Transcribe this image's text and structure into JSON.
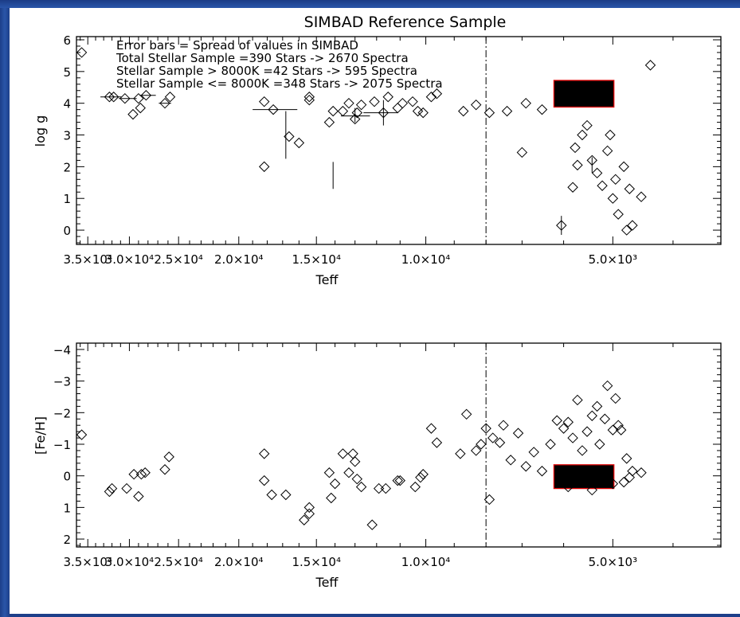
{
  "colors": {
    "frame": "#1f4590",
    "ink": "#000000",
    "highlight": "#dd0000"
  },
  "chart_data": [
    {
      "type": "scatter",
      "title": "SIMBAD Reference Sample",
      "xlabel": "Teff",
      "ylabel": "log g",
      "x_scale": "log",
      "x_reversed": true,
      "y_reversed": true,
      "xlim": [
        36500,
        3350
      ],
      "ylim": [
        6.1,
        -0.45
      ],
      "xticks": [
        35000,
        30000,
        25000,
        20000,
        15000,
        10000,
        5000
      ],
      "xtick_labels": [
        "3.5×10⁴",
        "3.0×10⁴",
        "2.5×10⁴",
        "2.0×10⁴",
        "1.5×10⁴",
        "1.0×10⁴",
        "5.0×10³"
      ],
      "yticks": [
        0,
        1,
        2,
        3,
        4,
        5,
        6
      ],
      "ytick_labels": [
        "0",
        "1",
        "2",
        "3",
        "4",
        "5",
        "6"
      ],
      "annotations": [
        "Error bars = Spread of values in SIMBAD",
        "Total Stellar Sample =390 Stars -> 2670 Spectra",
        "Stellar Sample > 8000K =42 Stars -> 595 Spectra",
        "Stellar Sample <= 8000K =348 Stars -> 2075 Spectra"
      ],
      "vline_x": 8000,
      "highlight_box": {
        "x": [
          6220,
          4980
        ],
        "y": [
          3.88,
          4.72
        ]
      },
      "points": [
        [
          35800,
          5.6
        ],
        [
          32300,
          4.2
        ],
        [
          31800,
          4.2
        ],
        [
          30500,
          4.15
        ],
        [
          29600,
          3.65
        ],
        [
          29000,
          4.15
        ],
        [
          28800,
          3.85
        ],
        [
          28200,
          4.25
        ],
        [
          26300,
          4.0
        ],
        [
          25800,
          4.2
        ],
        [
          18200,
          2.0
        ],
        [
          18200,
          4.05
        ],
        [
          17600,
          3.8
        ],
        [
          16600,
          2.95
        ],
        [
          16000,
          2.75
        ],
        [
          15400,
          4.1
        ],
        [
          15400,
          4.2
        ],
        [
          14300,
          3.4
        ],
        [
          14100,
          3.75
        ],
        [
          13600,
          3.75
        ],
        [
          13300,
          4.0
        ],
        [
          13000,
          3.5
        ],
        [
          12900,
          3.7
        ],
        [
          12700,
          3.95
        ],
        [
          12100,
          4.05
        ],
        [
          11700,
          3.7
        ],
        [
          11500,
          4.2
        ],
        [
          11100,
          3.85
        ],
        [
          10900,
          4.0
        ],
        [
          10500,
          4.05
        ],
        [
          10300,
          3.75
        ],
        [
          10100,
          3.7
        ],
        [
          9800,
          4.2
        ],
        [
          9600,
          4.3
        ],
        [
          8700,
          3.75
        ],
        [
          8300,
          3.95
        ],
        [
          7900,
          3.7
        ],
        [
          7400,
          3.75
        ],
        [
          7000,
          2.45
        ],
        [
          6900,
          4.0
        ],
        [
          6500,
          3.8
        ],
        [
          6050,
          0.15
        ],
        [
          5800,
          1.35
        ],
        [
          5700,
          2.05
        ],
        [
          5750,
          2.6
        ],
        [
          5600,
          3.0
        ],
        [
          5500,
          3.3
        ],
        [
          5400,
          2.2
        ],
        [
          5300,
          1.8
        ],
        [
          5200,
          1.4
        ],
        [
          5100,
          2.5
        ],
        [
          5050,
          3.0
        ],
        [
          5000,
          1.0
        ],
        [
          4950,
          1.6
        ],
        [
          4900,
          0.5
        ],
        [
          4800,
          2.0
        ],
        [
          4750,
          0.0
        ],
        [
          4700,
          1.3
        ],
        [
          4650,
          0.15
        ],
        [
          4500,
          1.05
        ],
        [
          4350,
          5.2
        ]
      ],
      "error_bars": [
        {
          "x": 32100,
          "y": 4.2,
          "x_range": [
            33400,
            30900
          ]
        },
        {
          "x": 30300,
          "y": 4.15,
          "x_range": [
            31200,
            29200
          ]
        },
        {
          "x": 28200,
          "y": 4.25,
          "x_range": [
            28900,
            27200
          ]
        },
        {
          "x": 26300,
          "y": 4.0,
          "x_range": [
            26900,
            25700
          ]
        },
        {
          "x": 16800,
          "y": 2.95,
          "y_range": [
            2.25,
            3.75
          ]
        },
        {
          "x": 17600,
          "y": 3.8,
          "x_range": [
            19000,
            16100
          ]
        },
        {
          "x": 14100,
          "y": 1.75,
          "y_range": [
            1.3,
            2.15
          ]
        },
        {
          "x": 13000,
          "y": 3.6,
          "x_range": [
            13700,
            12300
          ],
          "y_range": [
            3.4,
            3.85
          ]
        },
        {
          "x": 11700,
          "y": 3.7,
          "x_range": [
            12600,
            11100
          ],
          "y_range": [
            3.3,
            4.1
          ]
        },
        {
          "x": 6050,
          "y": 0.15,
          "y_range": [
            -0.15,
            0.45
          ]
        },
        {
          "x": 5400,
          "y": 2.0,
          "y_range": [
            1.8,
            2.3
          ]
        }
      ]
    },
    {
      "type": "scatter",
      "title": "",
      "xlabel": "Teff",
      "ylabel": "[Fe/H]",
      "x_scale": "log",
      "x_reversed": true,
      "xlim": [
        36500,
        3350
      ],
      "ylim": [
        -4.2,
        2.25
      ],
      "xticks": [
        35000,
        30000,
        25000,
        20000,
        15000,
        10000,
        5000
      ],
      "xtick_labels": [
        "3.5×10⁴",
        "3.0×10⁴",
        "2.5×10⁴",
        "2.0×10⁴",
        "1.5×10⁴",
        "1.0×10⁴",
        "5.0×10³"
      ],
      "yticks": [
        2,
        1,
        0,
        -1,
        -2,
        -3,
        -4
      ],
      "ytick_labels": [
        "2",
        "1",
        "0",
        "−1",
        "−2",
        "−3",
        "−4"
      ],
      "vline_x": 8000,
      "highlight_box": {
        "x": [
          6220,
          4980
        ],
        "y": [
          0.4,
          -0.35
        ]
      },
      "points": [
        [
          35800,
          -1.3
        ],
        [
          32300,
          0.5
        ],
        [
          32000,
          0.4
        ],
        [
          30300,
          0.4
        ],
        [
          29500,
          -0.05
        ],
        [
          29000,
          0.65
        ],
        [
          28700,
          -0.05
        ],
        [
          28300,
          -0.1
        ],
        [
          26300,
          -0.2
        ],
        [
          25900,
          -0.6
        ],
        [
          18200,
          0.15
        ],
        [
          18200,
          -0.7
        ],
        [
          17700,
          0.6
        ],
        [
          16800,
          0.6
        ],
        [
          15700,
          1.4
        ],
        [
          15400,
          1.2
        ],
        [
          15400,
          1.0
        ],
        [
          14300,
          -0.1
        ],
        [
          14200,
          0.7
        ],
        [
          14000,
          0.25
        ],
        [
          13600,
          -0.7
        ],
        [
          13300,
          -0.1
        ],
        [
          13100,
          -0.7
        ],
        [
          13000,
          -0.45
        ],
        [
          12900,
          0.1
        ],
        [
          12700,
          0.35
        ],
        [
          12200,
          1.55
        ],
        [
          11900,
          0.4
        ],
        [
          11600,
          0.4
        ],
        [
          11100,
          0.15
        ],
        [
          11000,
          0.15
        ],
        [
          10400,
          0.35
        ],
        [
          10200,
          0.05
        ],
        [
          10100,
          -0.05
        ],
        [
          9800,
          -1.5
        ],
        [
          9600,
          -1.05
        ],
        [
          8800,
          -0.7
        ],
        [
          8600,
          -1.95
        ],
        [
          8300,
          -0.8
        ],
        [
          8150,
          -1.0
        ],
        [
          8000,
          -1.5
        ],
        [
          7900,
          0.75
        ],
        [
          7800,
          -1.2
        ],
        [
          7600,
          -1.05
        ],
        [
          7500,
          -1.6
        ],
        [
          7300,
          -0.5
        ],
        [
          7100,
          -1.35
        ],
        [
          6900,
          -0.3
        ],
        [
          6700,
          -0.75
        ],
        [
          6500,
          -0.15
        ],
        [
          6300,
          -1.0
        ],
        [
          6150,
          -1.75
        ],
        [
          6000,
          -1.5
        ],
        [
          5900,
          -1.7
        ],
        [
          5800,
          -1.2
        ],
        [
          5700,
          -2.4
        ],
        [
          5600,
          -0.8
        ],
        [
          5500,
          -1.4
        ],
        [
          5400,
          -1.9
        ],
        [
          5300,
          -2.2
        ],
        [
          5250,
          -1.0
        ],
        [
          5150,
          -1.8
        ],
        [
          5100,
          -2.85
        ],
        [
          5000,
          -1.45
        ],
        [
          4950,
          -2.45
        ],
        [
          4900,
          -1.6
        ],
        [
          4850,
          -1.45
        ],
        [
          4800,
          0.2
        ],
        [
          4750,
          -0.55
        ],
        [
          4700,
          0.05
        ],
        [
          4650,
          -0.15
        ],
        [
          4500,
          -0.1
        ],
        [
          5900,
          0.35
        ],
        [
          5400,
          0.45
        ],
        [
          5000,
          0.25
        ]
      ]
    }
  ]
}
